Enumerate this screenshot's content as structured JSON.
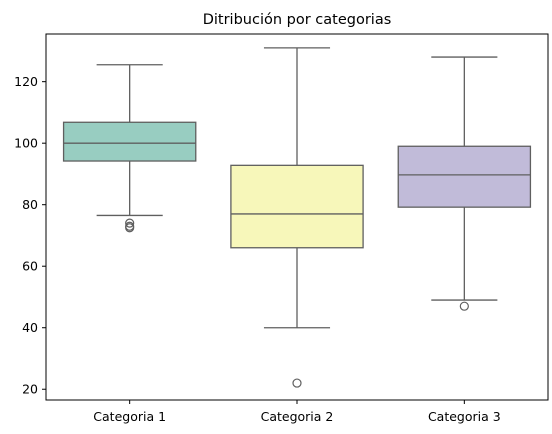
{
  "chart_data": {
    "type": "box",
    "title": "Ditribución por categorias",
    "xlabel": "",
    "ylabel": "",
    "ylim": [
      16.5,
      135.5
    ],
    "yticks": [
      20,
      40,
      60,
      80,
      100,
      120
    ],
    "categories": [
      "Categoria 1",
      "Categoria 2",
      "Categoria 3"
    ],
    "boxes": [
      {
        "category": "Categoria 1",
        "whisker_low": 76.5,
        "q1": 94.2,
        "median": 100.0,
        "q3": 106.8,
        "whisker_high": 125.5,
        "outliers": [
          74.0,
          73.0,
          72.5
        ],
        "color": "#98cdc1"
      },
      {
        "category": "Categoria 2",
        "whisker_low": 40.0,
        "q1": 66.0,
        "median": 77.0,
        "q3": 92.8,
        "whisker_high": 131.0,
        "outliers": [
          22.0
        ],
        "color": "#f7f7ba"
      },
      {
        "category": "Categoria 3",
        "whisker_low": 49.0,
        "q1": 79.2,
        "median": 89.7,
        "q3": 99.0,
        "whisker_high": 128.0,
        "outliers": [
          47.0
        ],
        "color": "#c1bbd9"
      }
    ],
    "grid": false,
    "line_color": "#5f5f5f"
  }
}
